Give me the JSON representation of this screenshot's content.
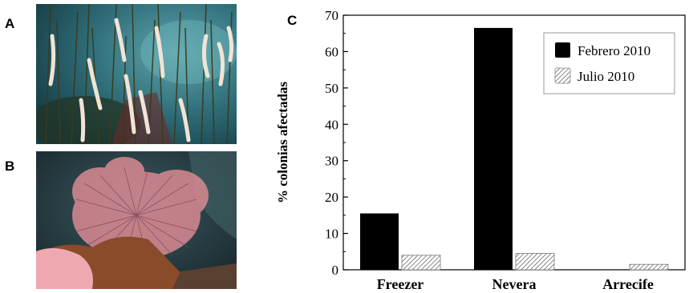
{
  "panels": {
    "a": "A",
    "b": "B",
    "c": "C"
  },
  "photos": {
    "a": {
      "subject": "white-gorgonian-colonies-underwater"
    },
    "b": {
      "subject": "pink-sea-fan-colony-underwater"
    }
  },
  "colors": {
    "febrero": "#000000",
    "julio": "#ffffff",
    "axis": "#000000"
  },
  "chart_data": {
    "type": "bar",
    "categories": [
      "Freezer",
      "Nevera",
      "Arrecife"
    ],
    "series": [
      {
        "name": "Febrero 2010",
        "values": [
          15.5,
          66.5,
          0
        ],
        "fill": "solid-black"
      },
      {
        "name": "Julio 2010",
        "values": [
          4,
          4.5,
          1.5
        ],
        "fill": "diagonal-hatch"
      }
    ],
    "title": "",
    "xlabel": "",
    "ylabel": "% colonias afectadas",
    "ylim": [
      0,
      70
    ],
    "yticks": [
      "0",
      "10",
      "20",
      "30",
      "40",
      "50",
      "60",
      "70"
    ],
    "grid": false,
    "legend_position": "top-right"
  }
}
